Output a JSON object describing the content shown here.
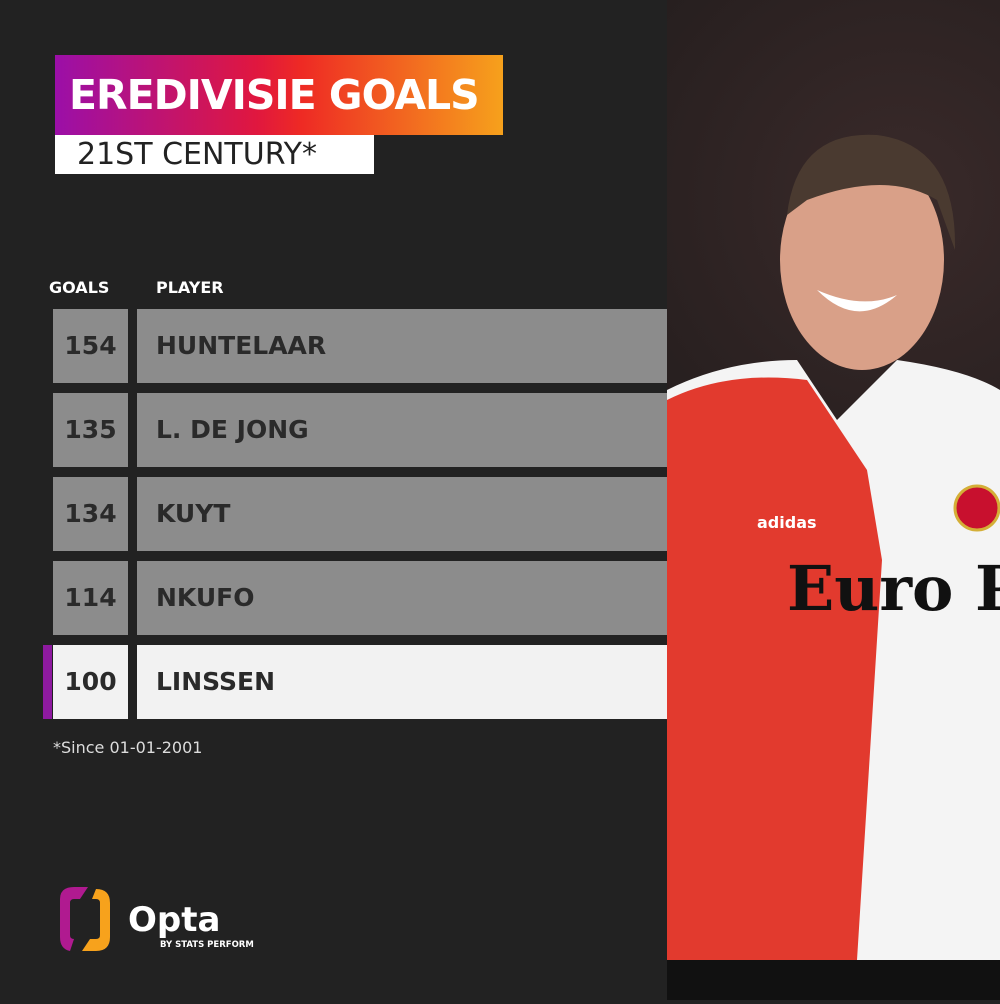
{
  "title": "EREDIVISIE GOALS",
  "subtitle": "21ST CENTURY*",
  "footnote": "*Since 01-01-2001",
  "logo": {
    "name": "Opta",
    "tagline": "BY STATS PERFORM"
  },
  "colors": {
    "highlight": "#8e1aa0",
    "row": "#8c8c8c",
    "highlight_row": "#f2f2f2",
    "background": "#222222"
  },
  "chart_data": {
    "type": "table",
    "columns": [
      "GOALS",
      "PLAYER"
    ],
    "rows": [
      {
        "goals": "154",
        "player": "HUNTELAAR"
      },
      {
        "goals": "135",
        "player": "L. DE JONG"
      },
      {
        "goals": "134",
        "player": "KUYT"
      },
      {
        "goals": "114",
        "player": "NKUFO"
      },
      {
        "goals": "100",
        "player": "LINSSEN",
        "highlighted": true
      }
    ]
  },
  "photo": {
    "shirt_sponsor": "Euro Parcs",
    "kit_brand": "adidas"
  }
}
